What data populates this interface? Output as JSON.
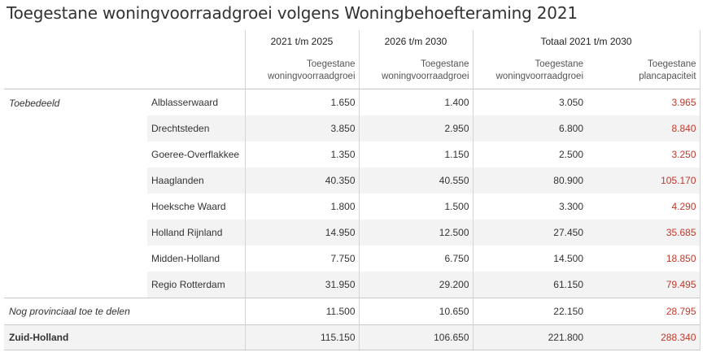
{
  "title": "Toegestane woningvoorraadgroei volgens Woningbehoefteraming 2021",
  "headers": {
    "period1": "2021 t/m 2025",
    "period2": "2026 t/m 2030",
    "total": "Totaal 2021 t/m 2030",
    "sub1": [
      "Toegestane",
      "woningvoorraadgroei"
    ],
    "sub2": [
      "Toegestane",
      "woningvoorraadgroei"
    ],
    "sub3": [
      "Toegestane",
      "woningvoorraadgroei"
    ],
    "sub4": [
      "Toegestane",
      "plancapaciteit"
    ]
  },
  "group_label": "Toebedeeld",
  "rows": [
    {
      "region": "Alblasserwaard",
      "v1": "1.650",
      "v2": "1.400",
      "v3": "3.050",
      "v4": "3.965"
    },
    {
      "region": "Drechtsteden",
      "v1": "3.850",
      "v2": "2.950",
      "v3": "6.800",
      "v4": "8.840"
    },
    {
      "region": "Goeree-Overflakkee",
      "v1": "1.350",
      "v2": "1.150",
      "v3": "2.500",
      "v4": "3.250"
    },
    {
      "region": "Haaglanden",
      "v1": "40.350",
      "v2": "40.550",
      "v3": "80.900",
      "v4": "105.170"
    },
    {
      "region": "Hoeksche Waard",
      "v1": "1.800",
      "v2": "1.500",
      "v3": "3.300",
      "v4": "4.290"
    },
    {
      "region": "Holland Rijnland",
      "v1": "14.950",
      "v2": "12.500",
      "v3": "27.450",
      "v4": "35.685"
    },
    {
      "region": "Midden-Holland",
      "v1": "7.750",
      "v2": "6.750",
      "v3": "14.500",
      "v4": "18.850"
    },
    {
      "region": "Regio Rotterdam",
      "v1": "31.950",
      "v2": "29.200",
      "v3": "61.150",
      "v4": "79.495"
    }
  ],
  "provincial": {
    "label": "Nog provinciaal toe te delen",
    "v1": "11.500",
    "v2": "10.650",
    "v3": "22.150",
    "v4": "28.795"
  },
  "total": {
    "label": "Zuid-Holland",
    "v1": "115.150",
    "v2": "106.650",
    "v3": "221.800",
    "v4": "288.340"
  },
  "colors": {
    "highlight": "#c0392b",
    "band": "#f3f3f3"
  }
}
